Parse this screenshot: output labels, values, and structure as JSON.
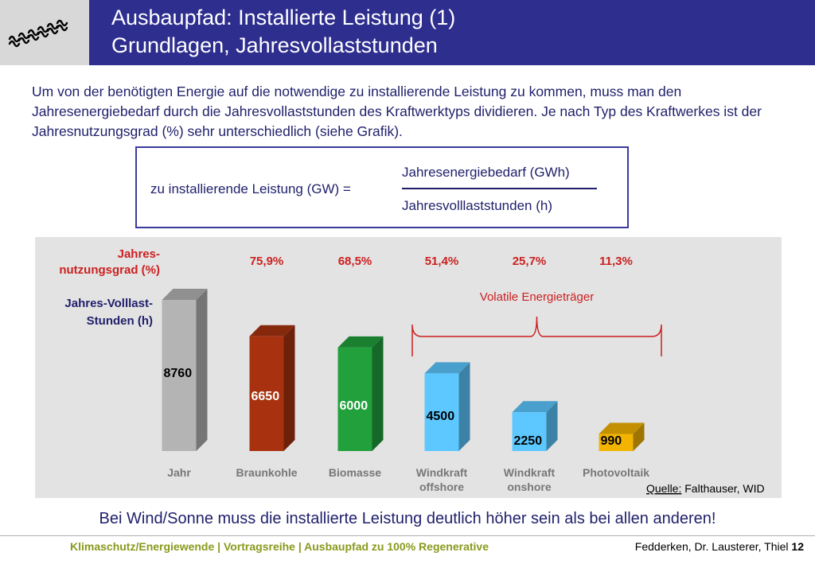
{
  "header": {
    "title_line1": "Ausbaupfad: Installierte Leistung (1)",
    "title_line2": "Grundlagen, Jahresvollaststunden",
    "logo": "eneff-wave-logo",
    "colors": {
      "title_bg": "#2e2e8f",
      "logo_bg": "#d8d8d8"
    }
  },
  "intro_text": "Um von der benötigten Energie auf die notwendige zu installierende Leistung zu kommen, muss man den Jahresenergiebedarf durch die Jahresvollaststunden des Kraftwerktyps dividieren. Je nach Typ des Kraftwerkes ist der Jahresnutzungsgrad (%) sehr unterschiedlich (siehe Grafik).",
  "formula": {
    "lhs": "zu installierende Leistung (GW) =",
    "numerator": "Jahresenergiebedarf (GWh)",
    "denominator": "Jahresvolllaststunden (h)"
  },
  "chart_data": {
    "type": "bar",
    "row_label_pct": [
      "Jahres-",
      "nutzungsgrad (%)"
    ],
    "row_label_hours": [
      "Jahres-Volllast-",
      "Stunden (h)"
    ],
    "categories": [
      [
        "Jahr"
      ],
      [
        "Braunkohle"
      ],
      [
        "Biomasse"
      ],
      [
        "Windkraft",
        "offshore"
      ],
      [
        "Windkraft",
        "onshore"
      ],
      [
        "Photovoltaik"
      ]
    ],
    "values": [
      8760,
      6650,
      6000,
      4500,
      2250,
      990
    ],
    "value_labels": [
      "8760",
      "6650",
      "6000",
      "4500",
      "2250",
      "990"
    ],
    "percent_labels": [
      "",
      "75,9%",
      "68,5%",
      "51,4%",
      "25,7%",
      "11,3%"
    ],
    "bar_colors": [
      "#b4b4b4",
      "#a8320f",
      "#21a03c",
      "#5cc8ff",
      "#5cc8ff",
      "#f2b400"
    ],
    "value_label_colors": [
      "#000000",
      "#ffffff",
      "#ffffff",
      "#000000",
      "#000000",
      "#000000"
    ],
    "brace_label": "Volatile Energieträger",
    "brace_span": [
      3,
      5
    ],
    "source_prefix": "Quelle:",
    "source_text": " Falthauser, WID",
    "colors": {
      "pct_text": "#cc2020",
      "row_label": "#1f1f6b",
      "panel_bg": "#e3e3e3",
      "category_text": "#777777"
    }
  },
  "conclusion": "Bei Wind/Sonne muss die installierte Leistung deutlich höher sein als bei allen anderen!",
  "footer": {
    "left": "Klimaschutz/Energiewende | Vortragsreihe | Ausbaupfad zu 100% Regenerative",
    "right_authors": "Fedderken, Dr. Lausterer, Thiel",
    "page_number": "12"
  }
}
